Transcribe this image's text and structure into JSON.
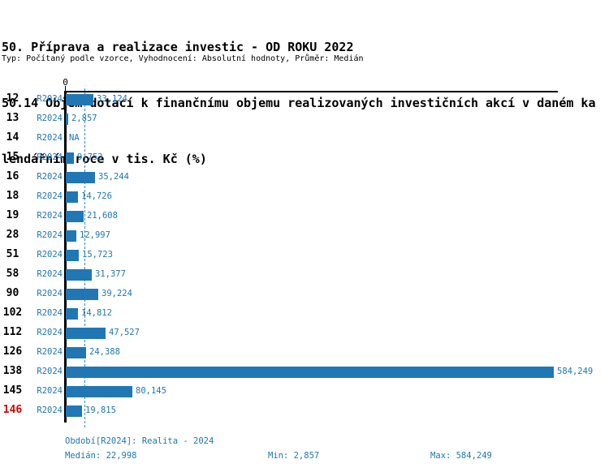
{
  "header": {
    "title_line1": "50. Příprava a realizace investic - OD ROKU 2022",
    "title_line2": "50.14 Objem dotací k finančnímu objemu realizovaných investičních akcí v daném ka",
    "title_line3": "lendářním roce v tis. Kč (%)",
    "subtitle": "Typ: Počítaný podle vzorce, Vyhodnocení: Absolutní hodnoty, Průměr: Medián"
  },
  "chart_data": {
    "type": "bar",
    "orientation": "horizontal",
    "title": "50.14 Objem dotací k finančnímu objemu realizovaných investičních akcí v daném kalendářním roce v tis. Kč (%)",
    "origin_label": "0",
    "period_label": "R2024",
    "categories": [
      "12",
      "13",
      "14",
      "15",
      "16",
      "18",
      "19",
      "28",
      "51",
      "58",
      "90",
      "102",
      "112",
      "126",
      "138",
      "145",
      "146"
    ],
    "values": [
      33124,
      2857,
      null,
      9753,
      35244,
      14726,
      21608,
      12997,
      15723,
      31377,
      39224,
      14812,
      47527,
      24388,
      584249,
      80145,
      19815
    ],
    "value_labels": [
      "33,124",
      "2,857",
      "NA",
      "9,753",
      "35,244",
      "14,726",
      "21,608",
      "12,997",
      "15,723",
      "31,377",
      "39,224",
      "14,812",
      "47,527",
      "24,388",
      "584,249",
      "80,145",
      "19,815"
    ],
    "highlighted_category": "146",
    "median_line_value": 22998,
    "xlim": [
      0,
      584249
    ],
    "grid": "single dashed median gridline",
    "legend": "none",
    "bar_color": "#2077b4",
    "text_color": "#2077b4",
    "highlight_color": "#dd0000",
    "axis_color": "#000000"
  },
  "footer": {
    "period_info": "Období[R2024]: Realita - 2024",
    "median": "Medián: 22,998",
    "min": "Min: 2,857",
    "max": "Max: 584,249",
    "stats": {
      "period": "Realita - 2024",
      "median": 22998,
      "min": 2857,
      "max": 584249
    }
  }
}
